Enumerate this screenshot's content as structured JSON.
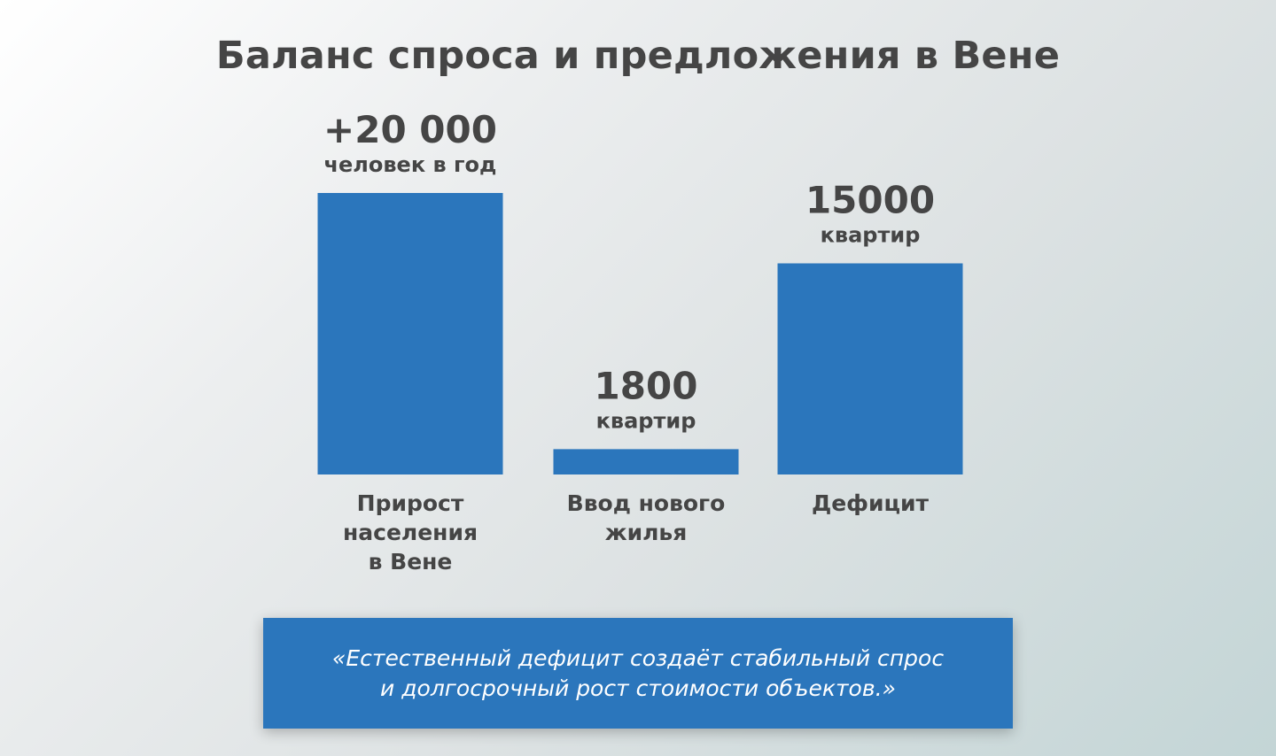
{
  "title": "Баланс спроса и предложения в Вене",
  "chart_data": {
    "type": "bar",
    "categories": [
      [
        "Прирост",
        "населения",
        "в Вене"
      ],
      [
        "Ввод нового",
        "жилья"
      ],
      [
        "Дефицит"
      ]
    ],
    "values": [
      20000,
      1800,
      15000
    ],
    "value_labels": [
      "+20 000",
      "1800",
      "15000"
    ],
    "unit_labels": [
      "человек в год",
      "квартир",
      "квартир"
    ],
    "bar_color": "#2b76bc"
  },
  "quote": {
    "lines": [
      "«Естественный дефицит создаёт стабильный спрос",
      "и долгосрочный рост стоимости объектов.»"
    ]
  }
}
